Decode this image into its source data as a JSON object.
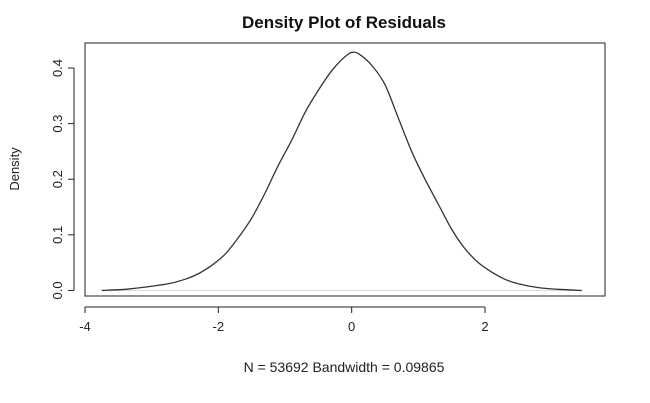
{
  "chart_data": {
    "type": "line",
    "title": "Density Plot of Residuals",
    "xlabel": "N = 53692   Bandwidth = 0.09865",
    "ylabel": "Density",
    "xlim": [
      -4,
      3.8
    ],
    "ylim": [
      -0.01,
      0.445
    ],
    "x_ticks": [
      -4,
      -2,
      0,
      2
    ],
    "x_tick_labels": [
      "-4",
      "-2",
      "0",
      "2"
    ],
    "y_ticks": [
      0.0,
      0.1,
      0.2,
      0.3,
      0.4
    ],
    "y_tick_labels": [
      "0.0",
      "0.1",
      "0.2",
      "0.3",
      "0.4"
    ],
    "grid": false,
    "zero_line": true,
    "series": [
      {
        "color": "#333333",
        "x": [
          -3.75,
          -3.4,
          -3.1,
          -2.75,
          -2.5,
          -2.3,
          -2.1,
          -1.9,
          -1.7,
          -1.5,
          -1.3,
          -1.1,
          -0.9,
          -0.7,
          -0.5,
          -0.3,
          -0.15,
          -0.05,
          0.0,
          0.1,
          0.3,
          0.5,
          0.7,
          0.9,
          1.1,
          1.3,
          1.5,
          1.7,
          1.9,
          2.1,
          2.3,
          2.5,
          2.8,
          3.1,
          3.45
        ],
        "y": [
          0.0,
          0.002,
          0.006,
          0.012,
          0.02,
          0.03,
          0.045,
          0.065,
          0.095,
          0.13,
          0.175,
          0.225,
          0.27,
          0.32,
          0.36,
          0.395,
          0.415,
          0.425,
          0.428,
          0.426,
          0.405,
          0.37,
          0.31,
          0.25,
          0.2,
          0.155,
          0.11,
          0.075,
          0.05,
          0.033,
          0.02,
          0.012,
          0.005,
          0.002,
          0.0
        ]
      }
    ]
  }
}
